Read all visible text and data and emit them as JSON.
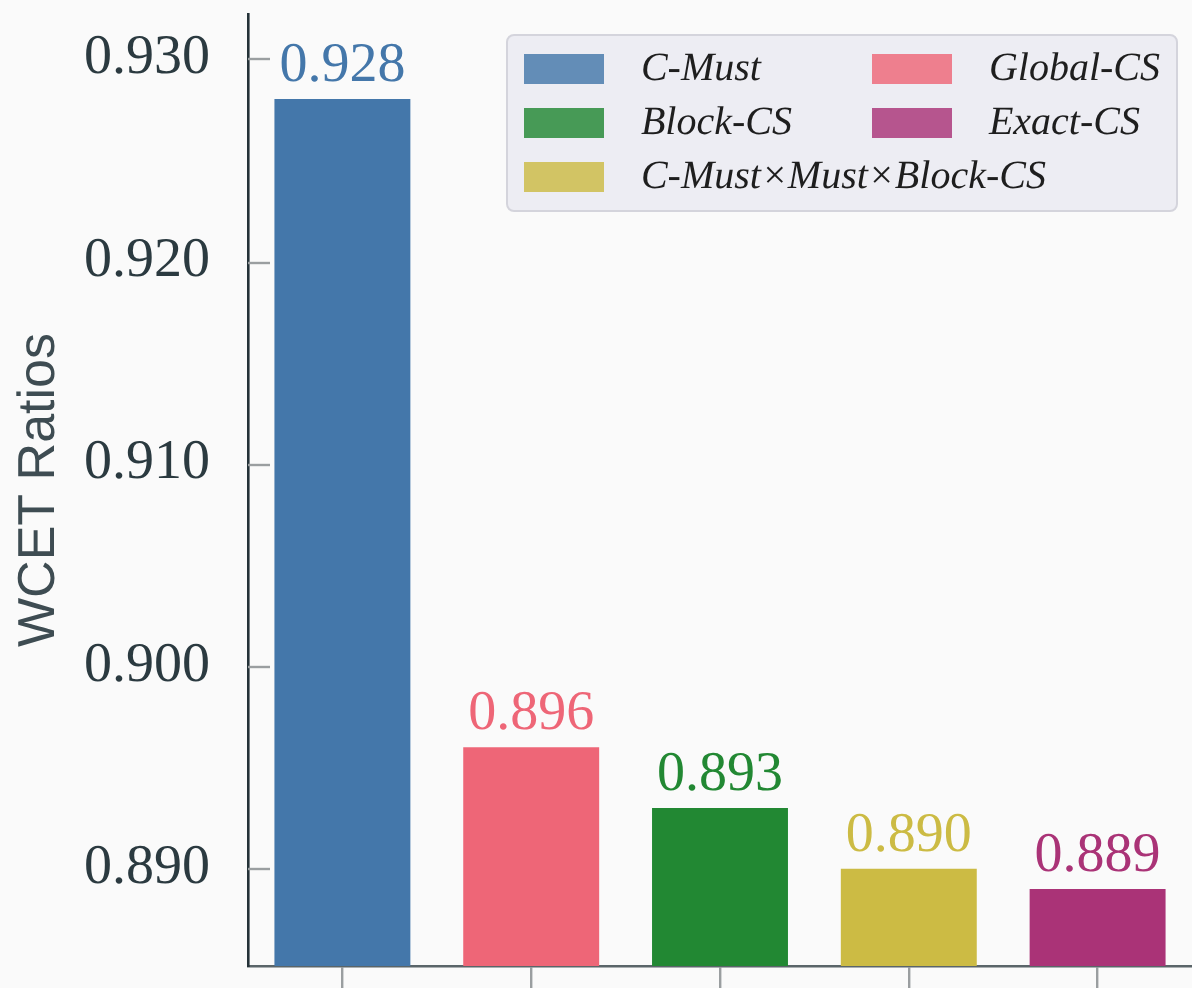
{
  "chart_data": {
    "type": "bar",
    "categories": [
      null,
      null,
      null,
      null,
      null
    ],
    "series": [
      {
        "name": "C-Must",
        "color": "#4477aa",
        "values": [
          0.928,
          null,
          null,
          null,
          null
        ],
        "value_labels": [
          "0.928",
          null,
          null,
          null,
          null
        ]
      },
      {
        "name": "Block-CS",
        "color": "#228833",
        "values": [
          null,
          null,
          0.893,
          null,
          null
        ],
        "value_labels": [
          null,
          null,
          "0.893",
          null,
          null
        ]
      },
      {
        "name": "C-Must×Must×Block-CS",
        "color": "#ccbb44",
        "values": [
          null,
          null,
          null,
          0.89,
          null
        ],
        "value_labels": [
          null,
          null,
          null,
          "0.890",
          null
        ]
      },
      {
        "name": "Global-CS",
        "color": "#ee6677",
        "values": [
          null,
          0.896,
          null,
          null,
          null
        ],
        "value_labels": [
          null,
          "0.896",
          null,
          null,
          null
        ]
      },
      {
        "name": "Exact-CS",
        "color": "#aa3377",
        "values": [
          null,
          null,
          null,
          null,
          0.889
        ],
        "value_labels": [
          null,
          null,
          null,
          null,
          "0.889"
        ]
      }
    ],
    "ylabel": "WCET Ratios",
    "ylim": [
      0.8852,
      0.9322
    ],
    "yticks": [
      {
        "value": 0.89,
        "label": "0.890"
      },
      {
        "value": 0.9,
        "label": "0.900"
      },
      {
        "value": 0.91,
        "label": "0.910"
      },
      {
        "value": 0.92,
        "label": "0.920"
      },
      {
        "value": 0.93,
        "label": "0.930"
      }
    ],
    "legend": "top right",
    "tick_labels": "y"
  }
}
